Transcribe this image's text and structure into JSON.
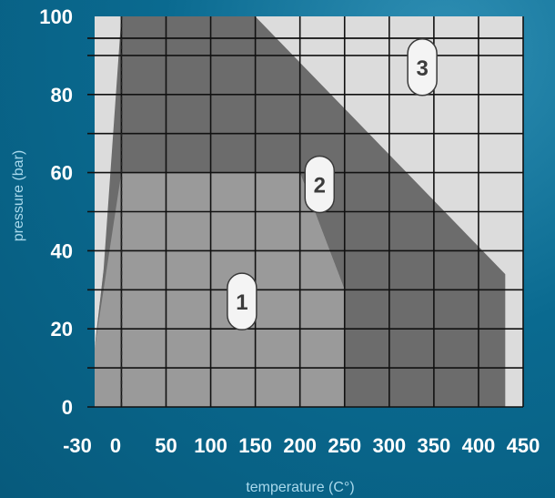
{
  "chart_data": {
    "type": "area",
    "title": "",
    "xlabel": "temperature (C°)",
    "ylabel": "pressure (bar)",
    "xlim": [
      -30,
      450
    ],
    "ylim": [
      0,
      100
    ],
    "x_ticks": [
      -30,
      0,
      50,
      100,
      150,
      200,
      250,
      300,
      350,
      400,
      450
    ],
    "y_ticks": [
      0,
      20,
      40,
      60,
      80,
      100
    ],
    "grid": true,
    "reference_line": {
      "x": 0,
      "style": "dashed"
    },
    "colors": {
      "plot_background": "#dcdcdc",
      "zone1": "#9a9a9a",
      "zone2": "#6c6c6c",
      "zone3": "#dcdcdc",
      "grid": "#111111",
      "label_background": "#f4f4f4"
    },
    "zones": [
      {
        "label": "1",
        "label_at": {
          "x": 135,
          "y": 27
        },
        "polygon": [
          [
            -30,
            0
          ],
          [
            -30,
            15
          ],
          [
            -20,
            35
          ],
          [
            0,
            60
          ],
          [
            200,
            60
          ],
          [
            250,
            30
          ],
          [
            250,
            0
          ]
        ]
      },
      {
        "label": "2",
        "label_at": {
          "x": 222,
          "y": 57
        },
        "polygon": [
          [
            -30,
            15
          ],
          [
            -20,
            35
          ],
          [
            0,
            100
          ],
          [
            150,
            100
          ],
          [
            430,
            34
          ],
          [
            430,
            0
          ],
          [
            250,
            0
          ],
          [
            250,
            30
          ],
          [
            200,
            60
          ],
          [
            0,
            60
          ]
        ]
      },
      {
        "label": "3",
        "label_at": {
          "x": 337,
          "y": 87
        },
        "polygon": [
          [
            150,
            100
          ],
          [
            450,
            100
          ],
          [
            450,
            0
          ],
          [
            430,
            0
          ],
          [
            430,
            34
          ]
        ]
      }
    ]
  }
}
